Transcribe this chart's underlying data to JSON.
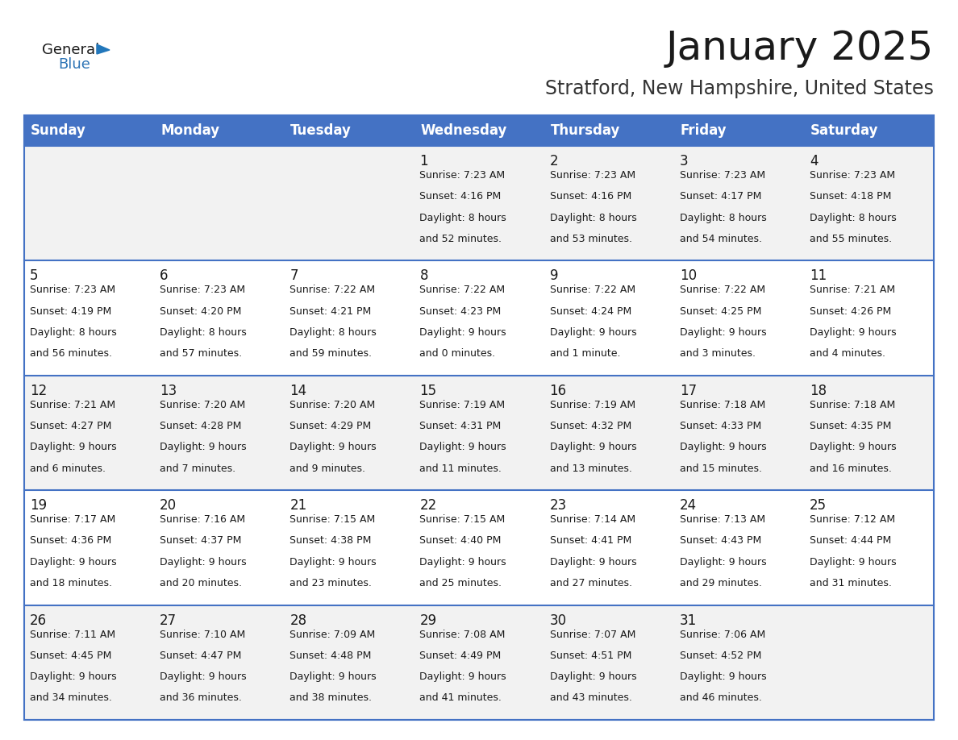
{
  "title": "January 2025",
  "subtitle": "Stratford, New Hampshire, United States",
  "header_bg": "#4472C4",
  "header_text_color": "#FFFFFF",
  "cell_bg_light": "#F2F2F2",
  "cell_bg_white": "#FFFFFF",
  "days_of_week": [
    "Sunday",
    "Monday",
    "Tuesday",
    "Wednesday",
    "Thursday",
    "Friday",
    "Saturday"
  ],
  "weeks": [
    [
      {
        "day": "",
        "sunrise": "",
        "sunset": "",
        "daylight_line1": "",
        "daylight_line2": ""
      },
      {
        "day": "",
        "sunrise": "",
        "sunset": "",
        "daylight_line1": "",
        "daylight_line2": ""
      },
      {
        "day": "",
        "sunrise": "",
        "sunset": "",
        "daylight_line1": "",
        "daylight_line2": ""
      },
      {
        "day": "1",
        "sunrise": "7:23 AM",
        "sunset": "4:16 PM",
        "daylight_line1": "Daylight: 8 hours",
        "daylight_line2": "and 52 minutes."
      },
      {
        "day": "2",
        "sunrise": "7:23 AM",
        "sunset": "4:16 PM",
        "daylight_line1": "Daylight: 8 hours",
        "daylight_line2": "and 53 minutes."
      },
      {
        "day": "3",
        "sunrise": "7:23 AM",
        "sunset": "4:17 PM",
        "daylight_line1": "Daylight: 8 hours",
        "daylight_line2": "and 54 minutes."
      },
      {
        "day": "4",
        "sunrise": "7:23 AM",
        "sunset": "4:18 PM",
        "daylight_line1": "Daylight: 8 hours",
        "daylight_line2": "and 55 minutes."
      }
    ],
    [
      {
        "day": "5",
        "sunrise": "7:23 AM",
        "sunset": "4:19 PM",
        "daylight_line1": "Daylight: 8 hours",
        "daylight_line2": "and 56 minutes."
      },
      {
        "day": "6",
        "sunrise": "7:23 AM",
        "sunset": "4:20 PM",
        "daylight_line1": "Daylight: 8 hours",
        "daylight_line2": "and 57 minutes."
      },
      {
        "day": "7",
        "sunrise": "7:22 AM",
        "sunset": "4:21 PM",
        "daylight_line1": "Daylight: 8 hours",
        "daylight_line2": "and 59 minutes."
      },
      {
        "day": "8",
        "sunrise": "7:22 AM",
        "sunset": "4:23 PM",
        "daylight_line1": "Daylight: 9 hours",
        "daylight_line2": "and 0 minutes."
      },
      {
        "day": "9",
        "sunrise": "7:22 AM",
        "sunset": "4:24 PM",
        "daylight_line1": "Daylight: 9 hours",
        "daylight_line2": "and 1 minute."
      },
      {
        "day": "10",
        "sunrise": "7:22 AM",
        "sunset": "4:25 PM",
        "daylight_line1": "Daylight: 9 hours",
        "daylight_line2": "and 3 minutes."
      },
      {
        "day": "11",
        "sunrise": "7:21 AM",
        "sunset": "4:26 PM",
        "daylight_line1": "Daylight: 9 hours",
        "daylight_line2": "and 4 minutes."
      }
    ],
    [
      {
        "day": "12",
        "sunrise": "7:21 AM",
        "sunset": "4:27 PM",
        "daylight_line1": "Daylight: 9 hours",
        "daylight_line2": "and 6 minutes."
      },
      {
        "day": "13",
        "sunrise": "7:20 AM",
        "sunset": "4:28 PM",
        "daylight_line1": "Daylight: 9 hours",
        "daylight_line2": "and 7 minutes."
      },
      {
        "day": "14",
        "sunrise": "7:20 AM",
        "sunset": "4:29 PM",
        "daylight_line1": "Daylight: 9 hours",
        "daylight_line2": "and 9 minutes."
      },
      {
        "day": "15",
        "sunrise": "7:19 AM",
        "sunset": "4:31 PM",
        "daylight_line1": "Daylight: 9 hours",
        "daylight_line2": "and 11 minutes."
      },
      {
        "day": "16",
        "sunrise": "7:19 AM",
        "sunset": "4:32 PM",
        "daylight_line1": "Daylight: 9 hours",
        "daylight_line2": "and 13 minutes."
      },
      {
        "day": "17",
        "sunrise": "7:18 AM",
        "sunset": "4:33 PM",
        "daylight_line1": "Daylight: 9 hours",
        "daylight_line2": "and 15 minutes."
      },
      {
        "day": "18",
        "sunrise": "7:18 AM",
        "sunset": "4:35 PM",
        "daylight_line1": "Daylight: 9 hours",
        "daylight_line2": "and 16 minutes."
      }
    ],
    [
      {
        "day": "19",
        "sunrise": "7:17 AM",
        "sunset": "4:36 PM",
        "daylight_line1": "Daylight: 9 hours",
        "daylight_line2": "and 18 minutes."
      },
      {
        "day": "20",
        "sunrise": "7:16 AM",
        "sunset": "4:37 PM",
        "daylight_line1": "Daylight: 9 hours",
        "daylight_line2": "and 20 minutes."
      },
      {
        "day": "21",
        "sunrise": "7:15 AM",
        "sunset": "4:38 PM",
        "daylight_line1": "Daylight: 9 hours",
        "daylight_line2": "and 23 minutes."
      },
      {
        "day": "22",
        "sunrise": "7:15 AM",
        "sunset": "4:40 PM",
        "daylight_line1": "Daylight: 9 hours",
        "daylight_line2": "and 25 minutes."
      },
      {
        "day": "23",
        "sunrise": "7:14 AM",
        "sunset": "4:41 PM",
        "daylight_line1": "Daylight: 9 hours",
        "daylight_line2": "and 27 minutes."
      },
      {
        "day": "24",
        "sunrise": "7:13 AM",
        "sunset": "4:43 PM",
        "daylight_line1": "Daylight: 9 hours",
        "daylight_line2": "and 29 minutes."
      },
      {
        "day": "25",
        "sunrise": "7:12 AM",
        "sunset": "4:44 PM",
        "daylight_line1": "Daylight: 9 hours",
        "daylight_line2": "and 31 minutes."
      }
    ],
    [
      {
        "day": "26",
        "sunrise": "7:11 AM",
        "sunset": "4:45 PM",
        "daylight_line1": "Daylight: 9 hours",
        "daylight_line2": "and 34 minutes."
      },
      {
        "day": "27",
        "sunrise": "7:10 AM",
        "sunset": "4:47 PM",
        "daylight_line1": "Daylight: 9 hours",
        "daylight_line2": "and 36 minutes."
      },
      {
        "day": "28",
        "sunrise": "7:09 AM",
        "sunset": "4:48 PM",
        "daylight_line1": "Daylight: 9 hours",
        "daylight_line2": "and 38 minutes."
      },
      {
        "day": "29",
        "sunrise": "7:08 AM",
        "sunset": "4:49 PM",
        "daylight_line1": "Daylight: 9 hours",
        "daylight_line2": "and 41 minutes."
      },
      {
        "day": "30",
        "sunrise": "7:07 AM",
        "sunset": "4:51 PM",
        "daylight_line1": "Daylight: 9 hours",
        "daylight_line2": "and 43 minutes."
      },
      {
        "day": "31",
        "sunrise": "7:06 AM",
        "sunset": "4:52 PM",
        "daylight_line1": "Daylight: 9 hours",
        "daylight_line2": "and 46 minutes."
      },
      {
        "day": "",
        "sunrise": "",
        "sunset": "",
        "daylight_line1": "",
        "daylight_line2": ""
      }
    ]
  ],
  "logo_color_general": "#1a1a1a",
  "logo_color_blue": "#2E75B6",
  "logo_triangle_color": "#2277BB",
  "title_fontsize": 36,
  "subtitle_fontsize": 17,
  "header_fontsize": 12,
  "day_num_fontsize": 12,
  "cell_text_fontsize": 9
}
